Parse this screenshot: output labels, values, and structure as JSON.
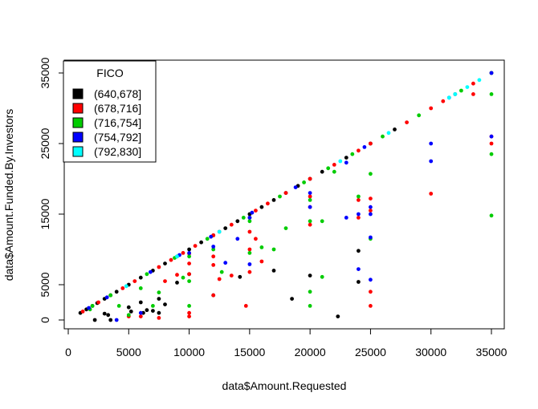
{
  "chart_data": {
    "type": "scatter",
    "xlabel": "data$Amount.Requested",
    "ylabel": "data$Amount.Funded.By.Investors",
    "xlim": [
      0,
      35500
    ],
    "ylim": [
      0,
      35500
    ],
    "x_ticks": [
      0,
      5000,
      10000,
      15000,
      20000,
      25000,
      30000,
      35000
    ],
    "y_ticks": [
      0,
      5000,
      15000,
      25000,
      35000
    ],
    "x_tick_labels": [
      "0",
      "5000",
      "10000",
      "15000",
      "20000",
      "25000",
      "30000",
      "35000"
    ],
    "y_tick_labels": [
      "0",
      "5000",
      "15000",
      "25000",
      "35000"
    ],
    "grid": false,
    "legend": {
      "title": "FICO",
      "placement": "top-left",
      "entries": [
        "(640,678]",
        "(678,716]",
        "(716,754]",
        "(754,792]",
        "(792,830]"
      ]
    },
    "series": [
      {
        "name": "(640,678]",
        "color": "#000000",
        "points": [
          [
            1000,
            1000
          ],
          [
            1500,
            1500
          ],
          [
            2000,
            2000
          ],
          [
            2400,
            2400
          ],
          [
            3000,
            3000
          ],
          [
            3500,
            3500
          ],
          [
            4000,
            4000
          ],
          [
            5000,
            5000
          ],
          [
            6000,
            6000
          ],
          [
            7000,
            7000
          ],
          [
            8000,
            8000
          ],
          [
            9000,
            9000
          ],
          [
            10000,
            10000
          ],
          [
            11000,
            11000
          ],
          [
            12000,
            12000
          ],
          [
            13000,
            13000
          ],
          [
            14000,
            14000
          ],
          [
            15000,
            15000
          ],
          [
            16000,
            16000
          ],
          [
            17000,
            17000
          ],
          [
            18000,
            18000
          ],
          [
            19000,
            19000
          ],
          [
            20000,
            20000
          ],
          [
            21000,
            21000
          ],
          [
            23000,
            23000
          ],
          [
            25000,
            25000
          ],
          [
            27000,
            27000
          ],
          [
            32000,
            32000
          ],
          [
            35000,
            35000
          ],
          [
            2200,
            0
          ],
          [
            3000,
            900
          ],
          [
            3300,
            700
          ],
          [
            3500,
            0
          ],
          [
            5000,
            1800
          ],
          [
            5200,
            1200
          ],
          [
            6000,
            2500
          ],
          [
            6200,
            1000
          ],
          [
            6500,
            1400
          ],
          [
            7000,
            1300
          ],
          [
            7500,
            1000
          ],
          [
            7500,
            3000
          ],
          [
            8000,
            2200
          ],
          [
            9000,
            5300
          ],
          [
            10000,
            6500
          ],
          [
            12000,
            3500
          ],
          [
            14200,
            6100
          ],
          [
            17000,
            7000
          ],
          [
            18500,
            3000
          ],
          [
            20000,
            6300
          ],
          [
            22300,
            500
          ],
          [
            24000,
            9800
          ],
          [
            24000,
            5400
          ],
          [
            15000,
            14500
          ]
        ]
      },
      {
        "name": "(678,716]",
        "color": "#ff0000",
        "points": [
          [
            1200,
            1200
          ],
          [
            2500,
            2500
          ],
          [
            4500,
            4500
          ],
          [
            5500,
            5500
          ],
          [
            7500,
            7500
          ],
          [
            8500,
            8500
          ],
          [
            9500,
            9500
          ],
          [
            10500,
            10500
          ],
          [
            12000,
            12000
          ],
          [
            12500,
            12500
          ],
          [
            13500,
            13500
          ],
          [
            15500,
            15500
          ],
          [
            16500,
            16500
          ],
          [
            18000,
            18000
          ],
          [
            20000,
            20000
          ],
          [
            22000,
            22000
          ],
          [
            24000,
            24000
          ],
          [
            25000,
            25000
          ],
          [
            28000,
            28000
          ],
          [
            30000,
            30000
          ],
          [
            31000,
            31000
          ],
          [
            33500,
            33500
          ],
          [
            35000,
            35000
          ],
          [
            5000,
            500
          ],
          [
            6000,
            500
          ],
          [
            7500,
            300
          ],
          [
            8000,
            5500
          ],
          [
            9000,
            6400
          ],
          [
            10000,
            1000
          ],
          [
            10000,
            500
          ],
          [
            10000,
            6500
          ],
          [
            10000,
            8000
          ],
          [
            10000,
            9400
          ],
          [
            12000,
            3500
          ],
          [
            12000,
            7800
          ],
          [
            12000,
            9000
          ],
          [
            12500,
            5800
          ],
          [
            13500,
            6300
          ],
          [
            14700,
            2000
          ],
          [
            15000,
            12500
          ],
          [
            15000,
            6800
          ],
          [
            15000,
            10000
          ],
          [
            15500,
            11500
          ],
          [
            16000,
            8300
          ],
          [
            20000,
            13500
          ],
          [
            20000,
            16000
          ],
          [
            20000,
            17500
          ],
          [
            24000,
            14500
          ],
          [
            24000,
            17000
          ],
          [
            25000,
            17200
          ],
          [
            25000,
            15500
          ],
          [
            25000,
            4000
          ],
          [
            25000,
            2000
          ],
          [
            30000,
            17900
          ],
          [
            33500,
            32000
          ],
          [
            35000,
            26000
          ],
          [
            35000,
            25000
          ]
        ]
      },
      {
        "name": "(716,754]",
        "color": "#00cc00",
        "points": [
          [
            2000,
            2000
          ],
          [
            3500,
            3500
          ],
          [
            6500,
            6500
          ],
          [
            8800,
            8800
          ],
          [
            11500,
            11500
          ],
          [
            14500,
            14500
          ],
          [
            17500,
            17500
          ],
          [
            19500,
            19500
          ],
          [
            21500,
            21500
          ],
          [
            23500,
            23500
          ],
          [
            26000,
            26000
          ],
          [
            29000,
            29000
          ],
          [
            32500,
            32500
          ],
          [
            35000,
            35000
          ],
          [
            1800,
            1500
          ],
          [
            4200,
            2000
          ],
          [
            5000,
            700
          ],
          [
            6000,
            4500
          ],
          [
            7000,
            2000
          ],
          [
            7500,
            3900
          ],
          [
            9500,
            6000
          ],
          [
            10000,
            5500
          ],
          [
            10000,
            2000
          ],
          [
            10000,
            9000
          ],
          [
            12000,
            10000
          ],
          [
            12700,
            6800
          ],
          [
            15000,
            14000
          ],
          [
            15000,
            9500
          ],
          [
            16000,
            10300
          ],
          [
            17000,
            10000
          ],
          [
            18000,
            13000
          ],
          [
            20000,
            14000
          ],
          [
            20000,
            17000
          ],
          [
            20000,
            2000
          ],
          [
            20000,
            4000
          ],
          [
            21000,
            14000
          ],
          [
            21000,
            6100
          ],
          [
            22000,
            21000
          ],
          [
            24000,
            17500
          ],
          [
            25000,
            11500
          ],
          [
            25000,
            20700
          ],
          [
            35000,
            32000
          ],
          [
            35000,
            23500
          ],
          [
            35000,
            14800
          ]
        ]
      },
      {
        "name": "(754,792]",
        "color": "#0000ff",
        "points": [
          [
            1700,
            1700
          ],
          [
            3200,
            3200
          ],
          [
            6800,
            6800
          ],
          [
            9200,
            9200
          ],
          [
            11800,
            11800
          ],
          [
            15200,
            15200
          ],
          [
            18800,
            18800
          ],
          [
            24500,
            24500
          ],
          [
            31500,
            31500
          ],
          [
            35000,
            35000
          ],
          [
            4000,
            0
          ],
          [
            6000,
            1000
          ],
          [
            10000,
            9500
          ],
          [
            12000,
            10400
          ],
          [
            13000,
            8100
          ],
          [
            14000,
            11500
          ],
          [
            15000,
            7900
          ],
          [
            15000,
            14500
          ],
          [
            20000,
            16000
          ],
          [
            20000,
            18000
          ],
          [
            23000,
            22300
          ],
          [
            23000,
            14500
          ],
          [
            24000,
            15000
          ],
          [
            25000,
            16000
          ],
          [
            25000,
            15000
          ],
          [
            25000,
            11700
          ],
          [
            25000,
            5700
          ],
          [
            24000,
            7200
          ],
          [
            30000,
            25000
          ],
          [
            30000,
            22500
          ],
          [
            35000,
            26000
          ]
        ]
      },
      {
        "name": "(792,830]",
        "color": "#00ffff",
        "points": [
          [
            4800,
            4800
          ],
          [
            9000,
            9000
          ],
          [
            12500,
            12500
          ],
          [
            22500,
            22500
          ],
          [
            26500,
            26500
          ],
          [
            31500,
            31500
          ],
          [
            32000,
            32000
          ],
          [
            33000,
            33000
          ],
          [
            34000,
            34000
          ]
        ]
      }
    ]
  }
}
